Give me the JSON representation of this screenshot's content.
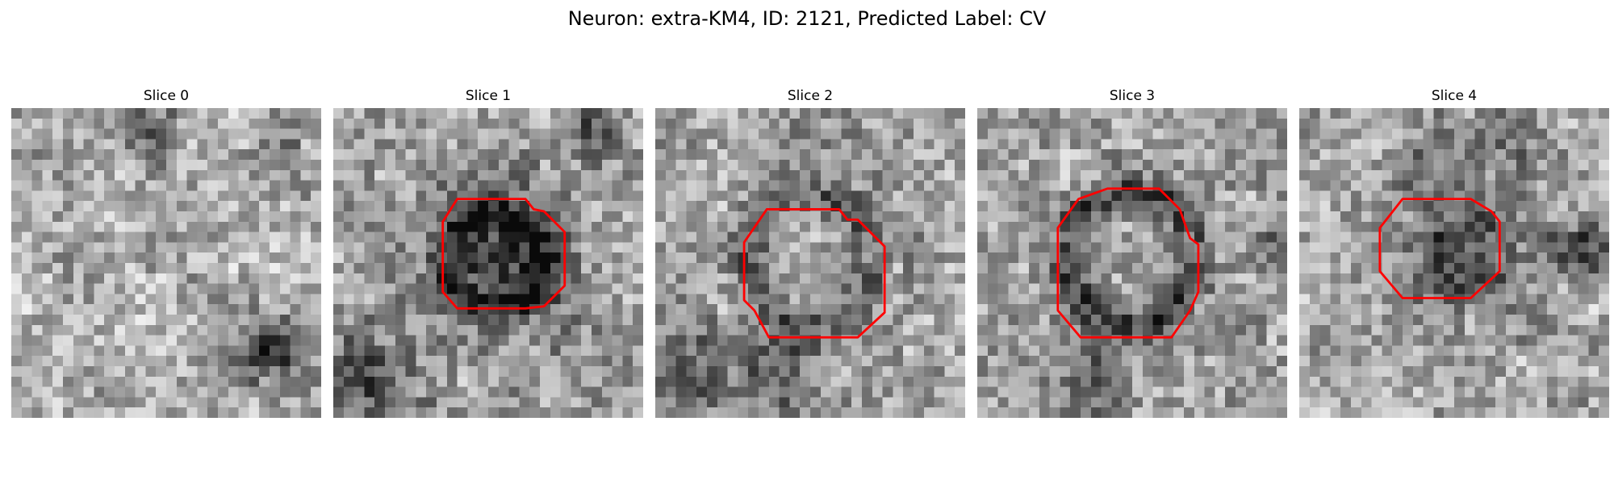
{
  "figure": {
    "title": "Neuron: extra-KM4, ID: 2121, Predicted Label: CV",
    "grid_size": 30,
    "contour_color": "#ff0000",
    "panels": [
      {
        "label": "Slice 0",
        "seed": 11,
        "base": 0.68,
        "has_contour": false,
        "dark_spots": [
          {
            "x": 25.5,
            "y": 23.5,
            "r": 2.2,
            "s": 0.5
          },
          {
            "x": 13.5,
            "y": 2.5,
            "r": 2.0,
            "s": 0.25
          },
          {
            "x": 26.5,
            "y": 5.5,
            "r": 1.8,
            "s": 0.2
          }
        ],
        "contour": []
      },
      {
        "label": "Slice 1",
        "seed": 23,
        "base": 0.64,
        "has_contour": true,
        "dark_spots": [
          {
            "x": 15.8,
            "y": 15.0,
            "r": 5.2,
            "s": 0.35
          },
          {
            "x": 3.5,
            "y": 26.5,
            "r": 3.0,
            "s": 0.35
          },
          {
            "x": 25.0,
            "y": 2.0,
            "r": 2.0,
            "s": 0.25
          }
        ],
        "ring": {
          "x": 15.8,
          "y": 14.8,
          "r": 4.6,
          "w": 1.5,
          "s": 0.3
        },
        "contour": [
          [
            12.0,
            8.8
          ],
          [
            18.6,
            8.8
          ],
          [
            19.4,
            9.8
          ],
          [
            20.4,
            10.0
          ],
          [
            22.4,
            12.0
          ],
          [
            22.4,
            17.2
          ],
          [
            20.4,
            19.2
          ],
          [
            18.6,
            19.4
          ],
          [
            12.0,
            19.4
          ],
          [
            10.6,
            17.8
          ],
          [
            10.6,
            11.0
          ]
        ]
      },
      {
        "label": "Slice 2",
        "seed": 37,
        "base": 0.64,
        "has_contour": true,
        "dark_spots": [
          {
            "x": 12.5,
            "y": 25.5,
            "r": 3.0,
            "s": 0.3
          },
          {
            "x": 3.5,
            "y": 26.0,
            "r": 2.6,
            "s": 0.3
          }
        ],
        "ring": {
          "x": 15.0,
          "y": 14.5,
          "r": 6.2,
          "w": 1.8,
          "s": 0.25
        },
        "contour": [
          [
            10.8,
            9.8
          ],
          [
            17.8,
            9.8
          ],
          [
            18.6,
            10.8
          ],
          [
            19.6,
            10.8
          ],
          [
            22.2,
            13.4
          ],
          [
            22.2,
            19.8
          ],
          [
            19.6,
            22.2
          ],
          [
            11.0,
            22.2
          ],
          [
            9.6,
            19.6
          ],
          [
            8.6,
            18.6
          ],
          [
            8.6,
            13.0
          ]
        ]
      },
      {
        "label": "Slice 3",
        "seed": 53,
        "base": 0.64,
        "has_contour": true,
        "dark_spots": [
          {
            "x": 11.5,
            "y": 26.5,
            "r": 2.4,
            "s": 0.3
          },
          {
            "x": 28.5,
            "y": 13.5,
            "r": 1.6,
            "s": 0.2
          }
        ],
        "ring": {
          "x": 15.0,
          "y": 14.6,
          "r": 6.4,
          "w": 1.8,
          "s": 0.33
        },
        "contour": [
          [
            9.8,
            8.8
          ],
          [
            12.6,
            7.8
          ],
          [
            17.6,
            7.8
          ],
          [
            19.6,
            9.8
          ],
          [
            20.6,
            12.6
          ],
          [
            21.4,
            13.2
          ],
          [
            21.4,
            17.8
          ],
          [
            20.6,
            19.6
          ],
          [
            18.8,
            22.2
          ],
          [
            10.0,
            22.2
          ],
          [
            7.8,
            19.6
          ],
          [
            7.8,
            11.6
          ]
        ]
      },
      {
        "label": "Slice 4",
        "seed": 71,
        "base": 0.66,
        "has_contour": true,
        "dark_spots": [
          {
            "x": 16.5,
            "y": 13.5,
            "r": 4.2,
            "s": 0.42
          },
          {
            "x": 27.5,
            "y": 13.5,
            "r": 2.2,
            "s": 0.3
          },
          {
            "x": 20.5,
            "y": 2.5,
            "r": 2.4,
            "s": 0.25
          },
          {
            "x": 13.5,
            "y": 4.0,
            "r": 2.6,
            "s": 0.15
          }
        ],
        "contour": [
          [
            10.0,
            8.8
          ],
          [
            16.6,
            8.8
          ],
          [
            18.6,
            10.0
          ],
          [
            19.4,
            11.0
          ],
          [
            19.4,
            15.8
          ],
          [
            16.6,
            18.4
          ],
          [
            10.0,
            18.4
          ],
          [
            7.8,
            15.8
          ],
          [
            7.8,
            11.6
          ]
        ]
      }
    ]
  }
}
